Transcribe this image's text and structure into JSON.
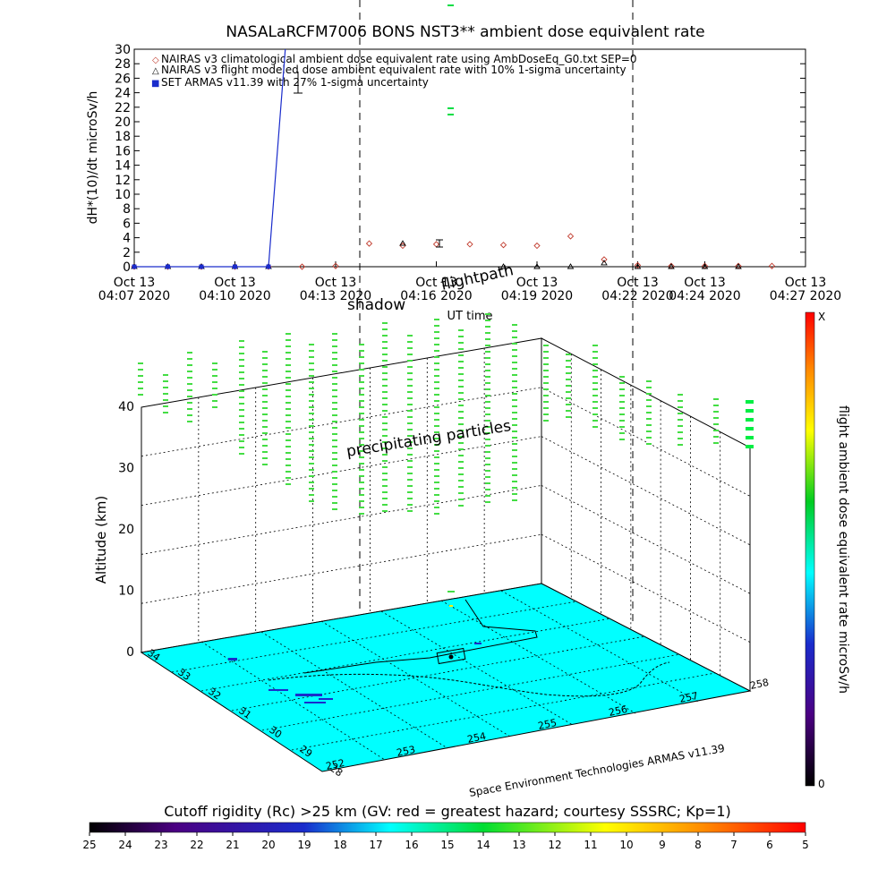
{
  "title": "NASALaRCFM7006  BONS NST3** ambient dose equivalent rate",
  "legend": [
    {
      "symbol": "◇",
      "color": "#c0392b",
      "text": "NAIRAS v3 climatological ambient dose equivalent rate using AmbDoseEq_G0.txt SEP=0"
    },
    {
      "symbol": "△",
      "color": "#000000",
      "text": "NAIRAS v3 flight modeled dose ambient equivalent rate with 10% 1-sigma uncertainty"
    },
    {
      "symbol": "■",
      "color": "#1a2ccc",
      "text": "SET ARMAS v11.39 with 27% 1-sigma uncertainty"
    }
  ],
  "time_axis": {
    "xlabel": "UT time",
    "ticks": [
      {
        "d": "Oct 13",
        "t": "04:07 2020"
      },
      {
        "d": "Oct 13",
        "t": "04:10 2020"
      },
      {
        "d": "Oct 13",
        "t": "04:13 2020"
      },
      {
        "d": "Oct 13",
        "t": "04:16 2020"
      },
      {
        "d": "Oct 13",
        "t": "04:19 2020"
      },
      {
        "d": "Oct 13",
        "t": "04:22 2020"
      },
      {
        "d": "Oct 13",
        "t": "04:24 2020"
      },
      {
        "d": "Oct 13",
        "t": "04:27 2020"
      }
    ]
  },
  "annotations": {
    "shadow": "shadow",
    "flightpath": "flightpath",
    "precipitating": "precipitating particles"
  },
  "globe": {
    "z_label": "Altitude (km)",
    "z_ticks": [
      "0",
      "10",
      "20",
      "30",
      "40"
    ],
    "lat_ticks": [
      "28",
      "29",
      "30",
      "31",
      "32",
      "33",
      "34"
    ],
    "lon_ticks": [
      "252",
      "253",
      "254",
      "255",
      "256",
      "257",
      "258"
    ],
    "credit": "Space Environment Technologies ARMAS v11.39"
  },
  "right_colorbar": {
    "label": "flight ambient dose equivalent rate microSv/h",
    "top": "X",
    "bottom": "0"
  },
  "bottom_colorbar": {
    "title": "Cutoff rigidity (Rc) >25 km (GV: red = greatest hazard; courtesy SSSRC; Kp=1)",
    "ticks": [
      "25",
      "24",
      "23",
      "22",
      "21",
      "20",
      "19",
      "18",
      "17",
      "16",
      "15",
      "14",
      "13",
      "12",
      "11",
      "10",
      "9",
      "8",
      "7",
      "6",
      "5"
    ]
  },
  "chart_data": {
    "type": "scatter",
    "title": "NASALaRCFM7006  BONS NST3** ambient dose equivalent rate",
    "xlabel": "UT time",
    "ylabel": "dH*(10)/dt microSv/h",
    "ylim": [
      0,
      30
    ],
    "yticks": [
      0,
      2,
      4,
      6,
      8,
      10,
      12,
      14,
      16,
      18,
      20,
      22,
      24,
      26,
      28,
      30
    ],
    "xlim": [
      "2020-10-13 04:07",
      "2020-10-13 04:27"
    ],
    "vlines": [
      "2020-10-13 04:14",
      "2020-10-13 04:22"
    ],
    "series": [
      {
        "name": "NAIRAS v3 climatological ambient dose equivalent rate using AmbDoseEq_G0.txt SEP=0",
        "marker": "diamond",
        "color": "#c0392b",
        "x": [
          "04:07",
          "04:08",
          "04:09",
          "04:10",
          "04:11",
          "04:12",
          "04:13",
          "04:14",
          "04:15",
          "04:16",
          "04:17",
          "04:18",
          "04:19",
          "04:20",
          "04:21",
          "04:22",
          "04:23",
          "04:24",
          "04:25",
          "04:26"
        ],
        "values": [
          0,
          0,
          0,
          0,
          0,
          0,
          0.1,
          3.2,
          2.9,
          3.1,
          3.1,
          3.0,
          2.9,
          4.2,
          1.0,
          0.2,
          0.1,
          0.1,
          0.1,
          0.1
        ]
      },
      {
        "name": "NAIRAS v3 flight modeled dose ambient equivalent rate with 10% 1-sigma uncertainty",
        "marker": "triangle",
        "color": "#000000",
        "x": [
          "04:07",
          "04:08",
          "04:09",
          "04:10",
          "04:11",
          "04:15",
          "04:18",
          "04:19",
          "04:20",
          "04:21",
          "04:22",
          "04:23",
          "04:24",
          "04:25"
        ],
        "values": [
          0,
          0,
          0,
          0,
          0,
          3.2,
          0,
          0,
          0,
          0.5,
          0,
          0,
          0,
          0
        ]
      },
      {
        "name": "SET ARMAS v11.39 with 27% 1-sigma uncertainty",
        "marker": "square",
        "color": "#1a2ccc",
        "x": [
          "04:07",
          "04:08",
          "04:09",
          "04:10",
          "04:11",
          "04:11.5"
        ],
        "values": [
          0,
          0,
          0,
          0,
          0,
          30
        ]
      }
    ]
  }
}
